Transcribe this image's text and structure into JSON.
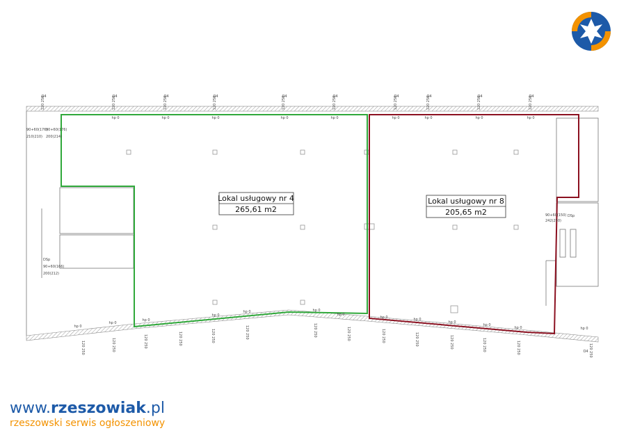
{
  "plan": {
    "units": [
      {
        "name": "Lokal usługowy nr 4",
        "area": "265,61 m2"
      },
      {
        "name": "Lokal usługowy nr 8",
        "area": "205,65 m2"
      }
    ],
    "window_type": "O4",
    "window_size": "120 250",
    "height_mark": "hp 0",
    "door_labels": [
      "90+60(176)",
      "210(210)",
      "90+60(176)",
      "200(214)",
      "DSp",
      "90+60(166)",
      "200(212)",
      "90+60(150)",
      "242(250)",
      "DSp"
    ]
  },
  "logo": {
    "www": "www.",
    "brand": "rzeszowiak",
    "tld": ".pl",
    "tagline": "rzeszowski serwis ogłoszeniowy"
  }
}
